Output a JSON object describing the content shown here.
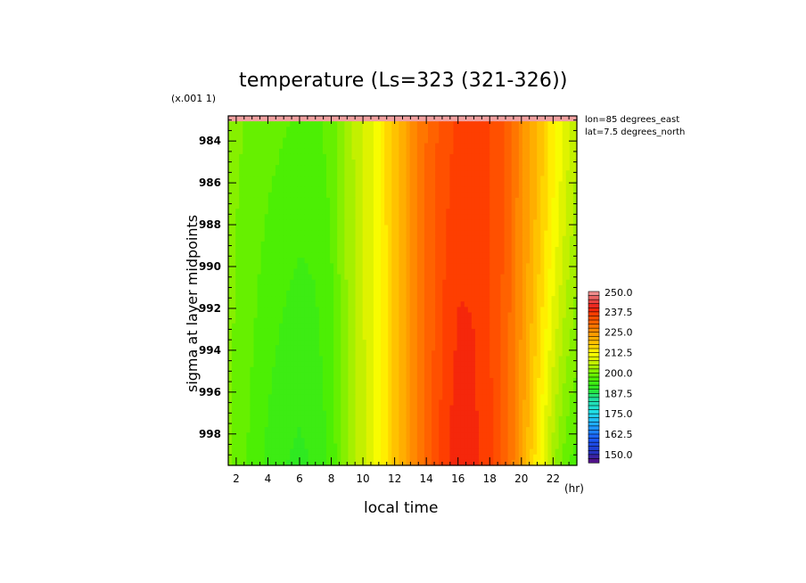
{
  "chart_data": {
    "type": "heatmap",
    "title": "temperature (Ls=323 (321-326))",
    "xlabel": "local time",
    "x_unit": "(hr)",
    "ylabel": "sigma at layer midpoints",
    "y_scale_note": "(x.001 1)",
    "x_ticks": [
      2,
      4,
      6,
      8,
      10,
      12,
      14,
      16,
      18,
      20,
      22
    ],
    "y_ticks": [
      984,
      986,
      988,
      990,
      992,
      994,
      996,
      998
    ],
    "xlim": [
      1.5,
      23.5
    ],
    "ylim": [
      982.8,
      999.5
    ],
    "y_inverted": true,
    "annotations": [
      "lon=85 degrees_east",
      "lat=7.5 degrees_north"
    ],
    "colorbar": {
      "labels": [
        "250.0",
        "237.5",
        "225.0",
        "212.5",
        "200.0",
        "187.5",
        "175.0",
        "162.5",
        "150.0"
      ],
      "range": [
        145,
        250
      ],
      "step": 2.5
    },
    "x": [
      1.5,
      2,
      3,
      4,
      5,
      6,
      7,
      8,
      9,
      10,
      11,
      12,
      13,
      14,
      15,
      16,
      17,
      18,
      19,
      20,
      21,
      22,
      23,
      23.5
    ],
    "temperature_profile": [
      201.5,
      200.5,
      199.5,
      198.5,
      197.8,
      197.0,
      197.0,
      198.5,
      203.5,
      207.5,
      212.0,
      218.5,
      225.0,
      230.0,
      233.5,
      235.5,
      236.0,
      235.0,
      232.0,
      226.0,
      220.0,
      213.5,
      207.5,
      205.0
    ]
  }
}
